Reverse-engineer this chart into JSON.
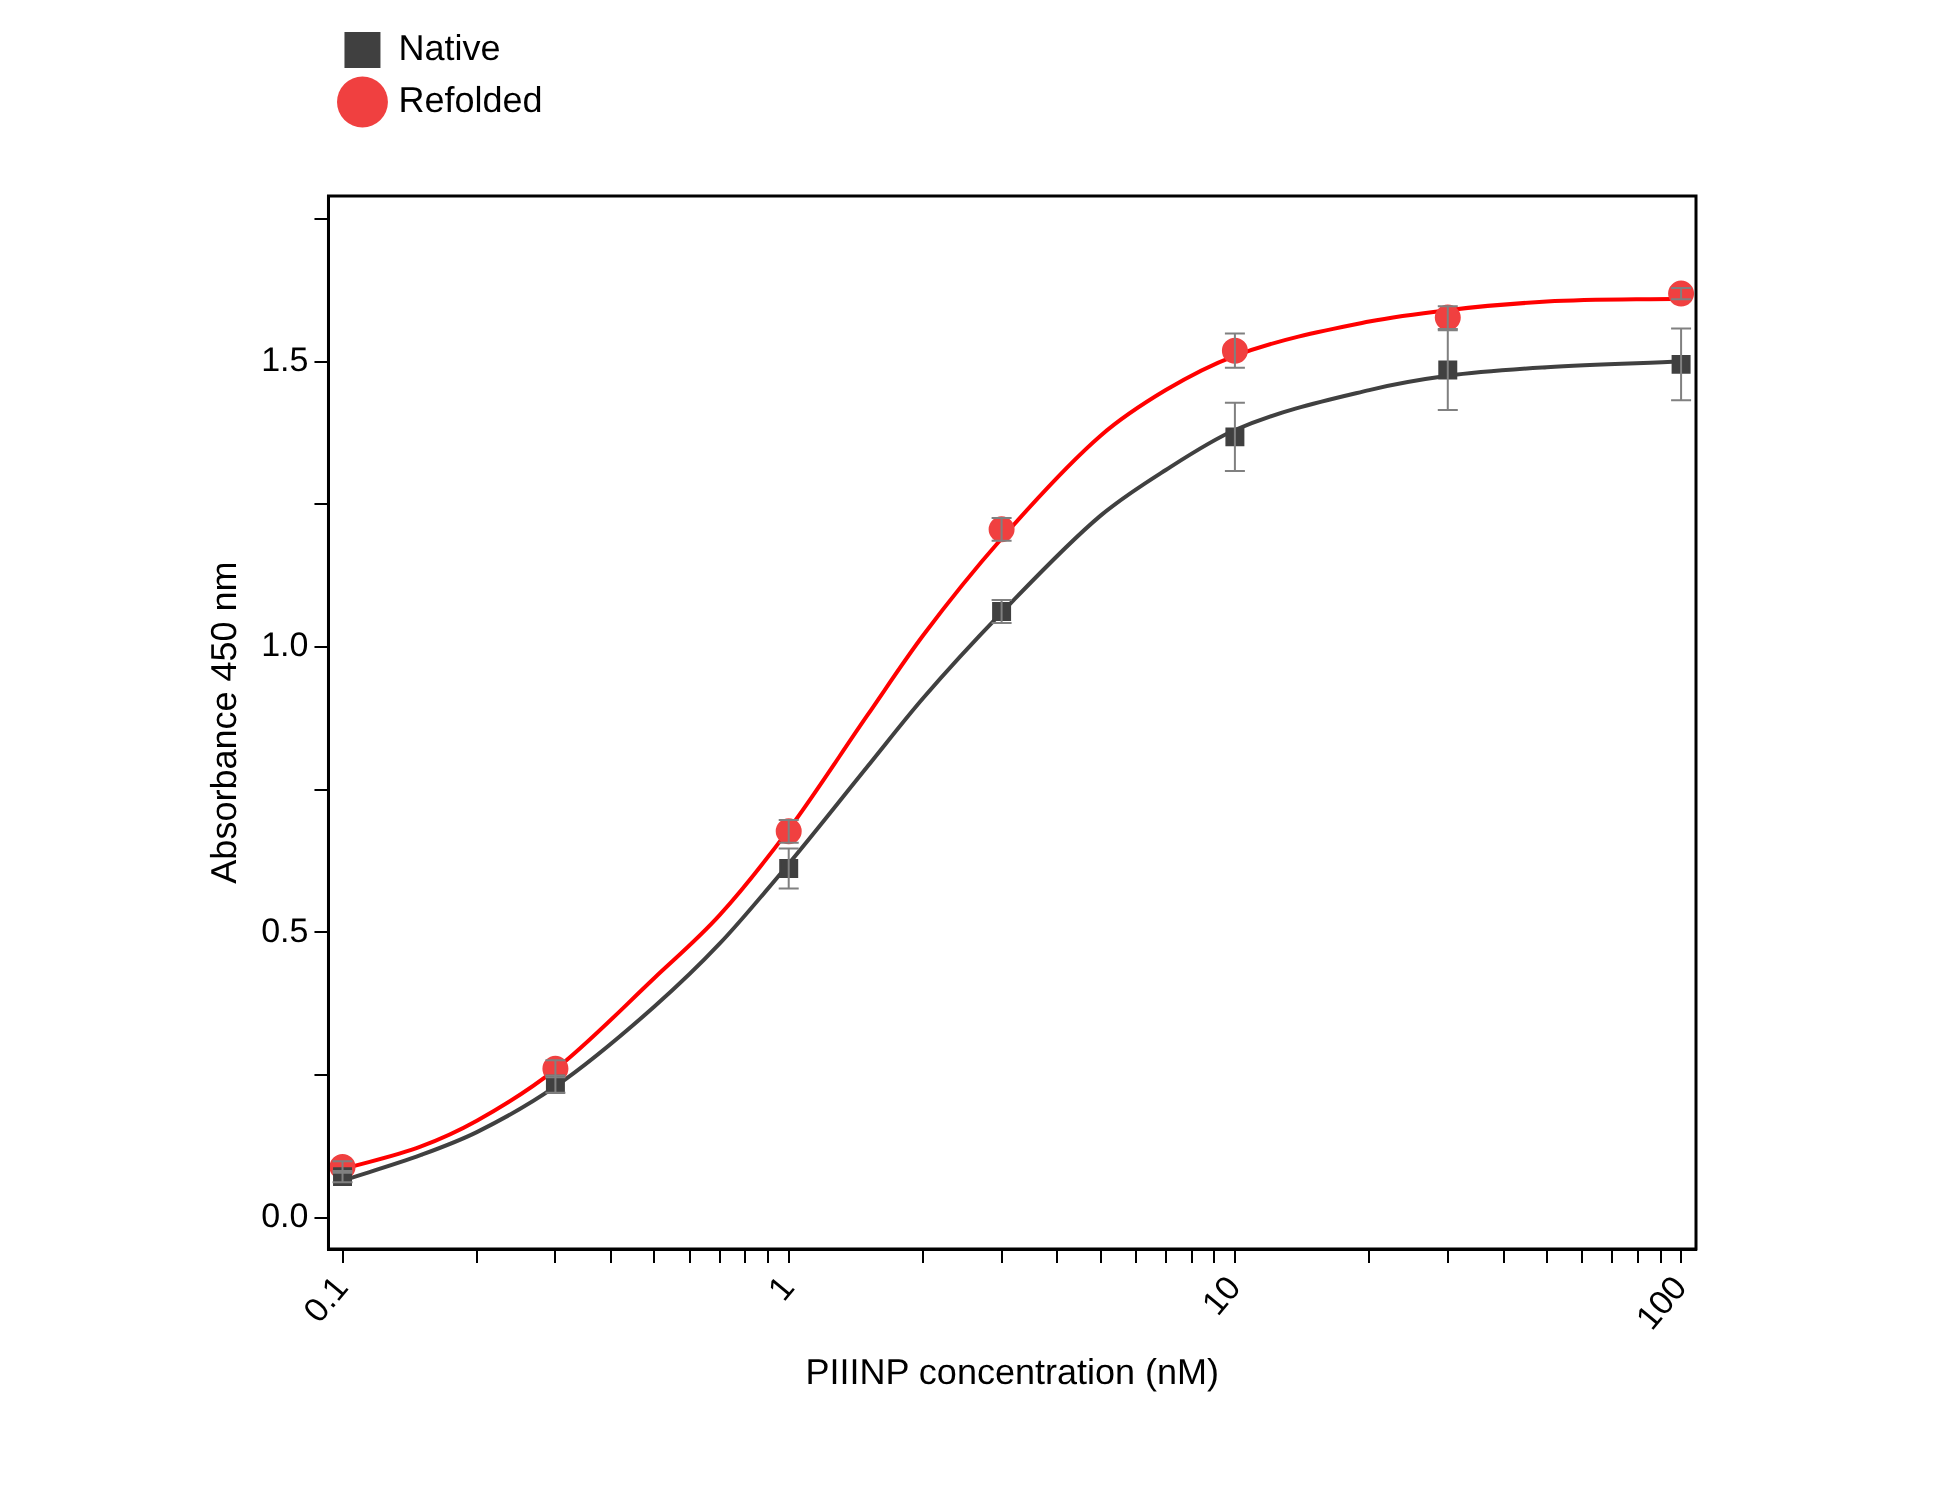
{
  "chart_data": {
    "type": "scatter",
    "xlabel": "PIIINP concentration (nM)",
    "ylabel": "Absorbance 450 nm",
    "log": "x",
    "grid": false,
    "legend": "top left",
    "x": [
      0.1,
      0.3,
      1,
      3,
      10,
      30,
      100
    ],
    "xlim": [
      0.093,
      108
    ],
    "xticks": [
      0.1,
      {
        "value": 0.2,
        "label": null
      },
      {
        "value": 0.3,
        "label": null
      },
      {
        "value": 0.4,
        "label": null
      },
      {
        "value": 0.5,
        "label": null
      },
      {
        "value": 0.6,
        "label": null
      },
      {
        "value": 0.7,
        "label": null
      },
      {
        "value": 0.8,
        "label": null
      },
      {
        "value": 0.9,
        "label": null
      },
      1,
      {
        "value": 2,
        "label": null
      },
      {
        "value": 3,
        "label": null
      },
      {
        "value": 4,
        "label": null
      },
      {
        "value": 5,
        "label": null
      },
      {
        "value": 6,
        "label": null
      },
      {
        "value": 7,
        "label": null
      },
      {
        "value": 8,
        "label": null
      },
      {
        "value": 9,
        "label": null
      },
      10,
      {
        "value": 20,
        "label": null
      },
      {
        "value": 30,
        "label": null
      },
      {
        "value": 40,
        "label": null
      },
      {
        "value": 50,
        "label": null
      },
      {
        "value": 60,
        "label": null
      },
      {
        "value": 70,
        "label": null
      },
      {
        "value": 80,
        "label": null
      },
      {
        "value": 90,
        "label": null
      },
      100
    ],
    "ylim": [
      -0.055,
      1.79
    ],
    "yticks": [
      {
        "value": 0,
        "label": "0.0"
      },
      {
        "value": 0.25,
        "label": null
      },
      {
        "value": 0.5,
        "label": "0.5"
      },
      {
        "value": 0.75,
        "label": null
      },
      {
        "value": 1,
        "label": "1.0"
      },
      {
        "value": 1.25,
        "label": null
      },
      {
        "value": 1.5,
        "label": "1.5"
      },
      {
        "value": 1.75,
        "label": null
      }
    ],
    "series": [
      {
        "name": "Native",
        "color": "#404040",
        "marker": "square",
        "values": [
          0.072,
          0.234,
          0.612,
          1.062,
          1.368,
          1.485,
          1.495
        ],
        "errors": [
          0.01,
          0.015,
          0.035,
          0.02,
          0.06,
          0.07,
          0.063
        ]
      },
      {
        "name": "Refolded",
        "color": "#f04040",
        "marker": "circle",
        "values": [
          0.089,
          0.261,
          0.677,
          1.206,
          1.519,
          1.577,
          1.619
        ],
        "errors": [
          0.01,
          0.015,
          0.02,
          0.02,
          0.03,
          0.02,
          0.01
        ]
      },
      {
        "type": "line",
        "color": "#404040",
        "marker": "none",
        "x": [
          0.1,
          0.15,
          0.2,
          0.3,
          0.5,
          0.7,
          1,
          1.5,
          2,
          3,
          5,
          7,
          10,
          20,
          30,
          50,
          100
        ],
        "values": [
          0.065,
          0.11,
          0.15,
          0.23,
          0.37,
          0.48,
          0.62,
          0.79,
          0.91,
          1.06,
          1.23,
          1.31,
          1.38,
          1.45,
          1.475,
          1.49,
          1.5
        ]
      },
      {
        "type": "line",
        "color": "#ff0000",
        "marker": "none",
        "x": [
          0.1,
          0.15,
          0.2,
          0.3,
          0.5,
          0.7,
          1,
          1.5,
          2,
          3,
          5,
          7,
          10,
          20,
          30,
          50,
          100
        ],
        "values": [
          0.085,
          0.125,
          0.17,
          0.26,
          0.42,
          0.53,
          0.68,
          0.88,
          1.02,
          1.19,
          1.37,
          1.45,
          1.51,
          1.57,
          1.59,
          1.605,
          1.61
        ]
      }
    ]
  }
}
